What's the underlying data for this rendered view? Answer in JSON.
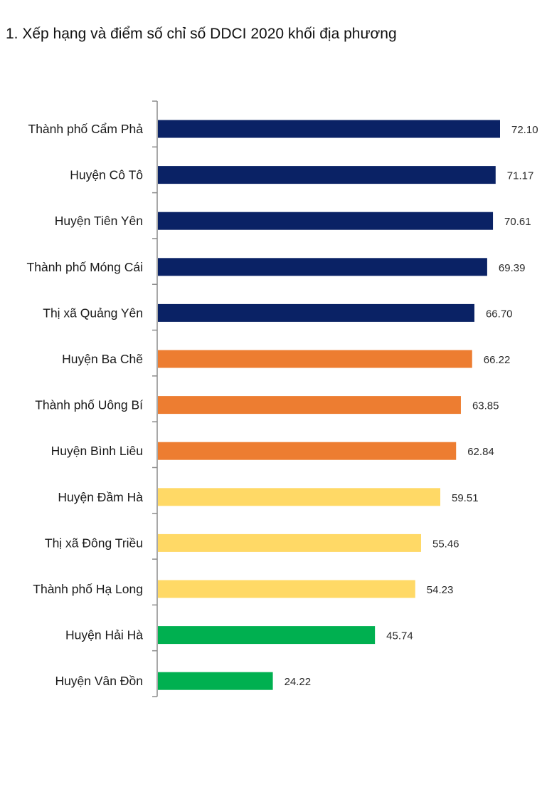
{
  "title": "1. Xếp hạng và điểm số chỉ số DDCI 2020 khối địa phương",
  "chart_data": {
    "type": "bar",
    "orientation": "horizontal",
    "title": "1. Xếp hạng và điểm số chỉ số DDCI 2020 khối địa phương",
    "xlim": [
      0,
      72.1
    ],
    "grid": false,
    "legend": "none",
    "categories": [
      "Thành phố Cẩm Phả",
      "Huyện Cô Tô",
      "Huyện Tiên Yên",
      "Thành phố Móng Cái",
      "Thị xã Quảng Yên",
      "Huyện Ba Chẽ",
      "Thành phố Uông Bí",
      "Huyện Bình Liêu",
      "Huyện Đầm Hà",
      "Thị xã Đông Triều",
      "Thành phố Hạ Long",
      "Huyện Hải Hà",
      "Huyện Vân Đồn"
    ],
    "values": [
      72.1,
      71.17,
      70.61,
      69.39,
      66.7,
      66.22,
      63.85,
      62.84,
      59.51,
      55.46,
      54.23,
      45.74,
      24.22
    ],
    "value_labels": [
      "72.10",
      "71.17",
      "70.61",
      "69.39",
      "66.70",
      "66.22",
      "63.85",
      "62.84",
      "59.51",
      "55.46",
      "54.23",
      "45.74",
      "24.22"
    ],
    "colors": [
      "#0a2265",
      "#0a2265",
      "#0a2265",
      "#0a2265",
      "#0a2265",
      "#ed7d31",
      "#ed7d31",
      "#ed7d31",
      "#ffd966",
      "#ffd966",
      "#ffd966",
      "#00b050",
      "#00b050"
    ],
    "axis_color": "#8c8c8c"
  }
}
